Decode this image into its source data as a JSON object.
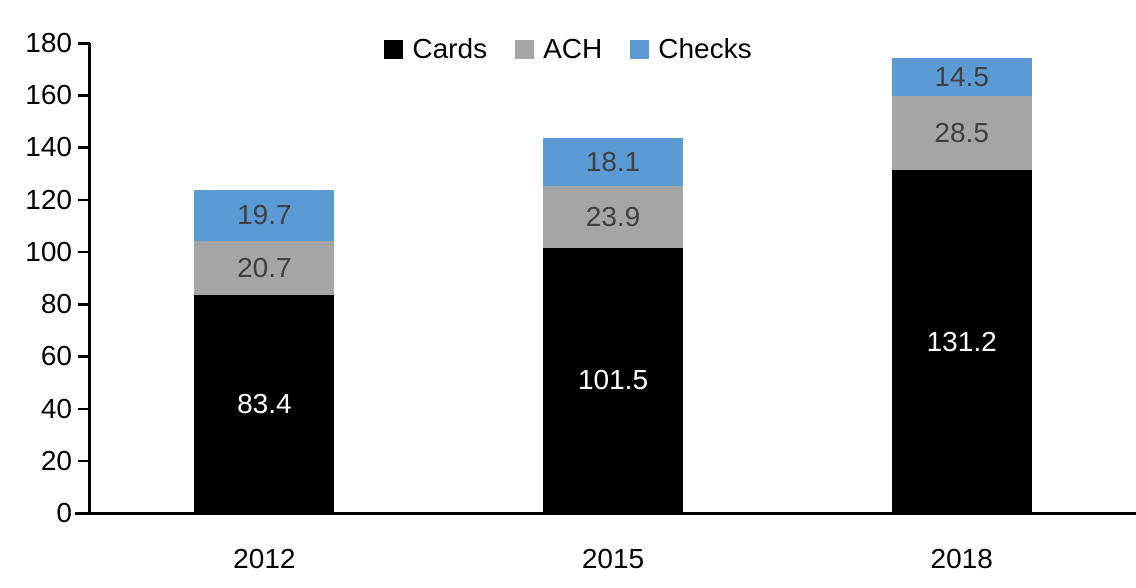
{
  "chart_data": {
    "type": "bar",
    "stacked": true,
    "title": "",
    "categories": [
      "2012",
      "2015",
      "2018"
    ],
    "series": [
      {
        "name": "Cards",
        "color": "#000000",
        "label_color": "#FFFFFF",
        "values": [
          83.4,
          101.5,
          131.2
        ]
      },
      {
        "name": "ACH",
        "color": "#A5A5A5",
        "label_color": "#404040",
        "values": [
          20.7,
          23.9,
          28.5
        ]
      },
      {
        "name": "Checks",
        "color": "#5B9BD5",
        "label_color": "#404040",
        "values": [
          19.7,
          18.1,
          14.5
        ]
      }
    ],
    "yticks": [
      0,
      20,
      40,
      60,
      80,
      100,
      120,
      140,
      160,
      180
    ],
    "ylim": [
      0,
      180
    ],
    "xlabel": "",
    "ylabel": "",
    "grid": false,
    "legend_position": "top-center",
    "axis_color": "#000000"
  }
}
